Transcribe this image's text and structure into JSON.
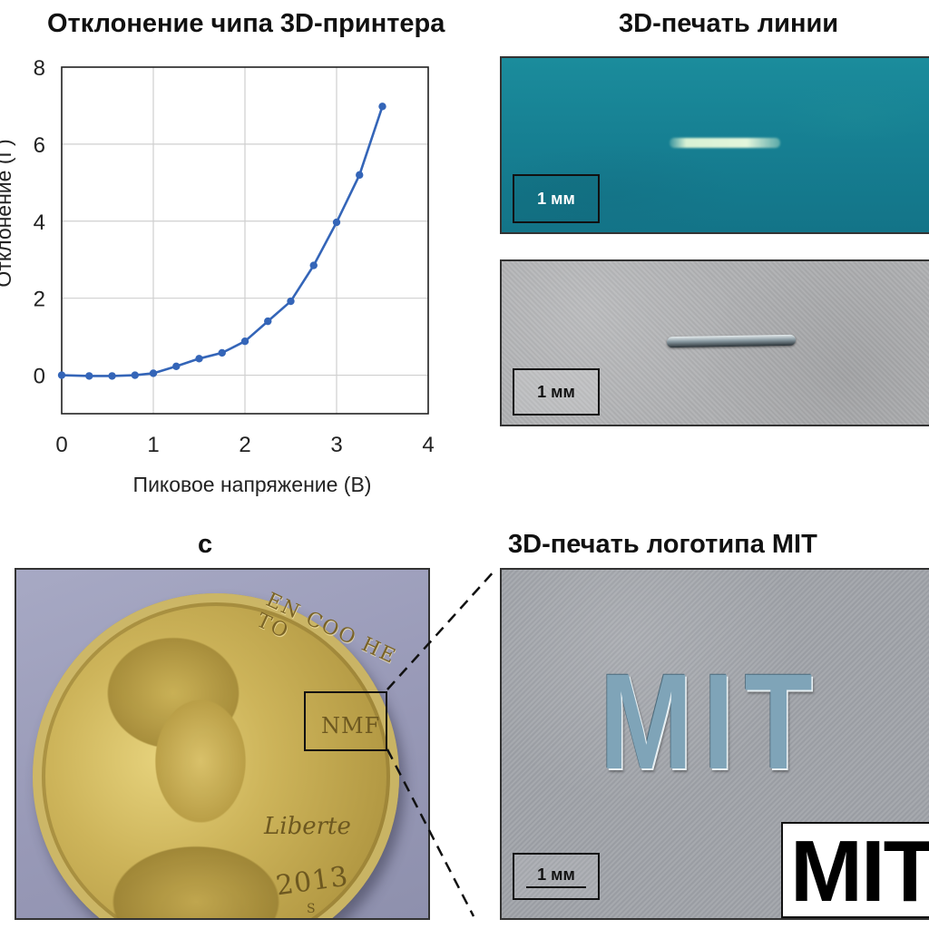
{
  "panels": {
    "chart_title": "Отклонение чипа 3D-принтера",
    "line_title": "3D-печать линии",
    "coin_title": "c",
    "logo_title": "3D-печать логотипа MIT"
  },
  "scale_bars": {
    "blue": "1 мм",
    "gray": "1 мм",
    "logo": "1 мм"
  },
  "coin": {
    "motto": "EN COO HE TO",
    "mint_mark": "NMF",
    "signature": "Liberte",
    "year": "2013",
    "mint": "S"
  },
  "logo": {
    "printed_text": "MIT",
    "logo_text": "MIT"
  },
  "chart_data": {
    "type": "line",
    "title": "",
    "xlabel": "Пиковое напряжение (В)",
    "ylabel": "Отклонение (Г)",
    "xlim": [
      0,
      4
    ],
    "ylim": [
      -1,
      8
    ],
    "xticks": [
      0,
      1,
      2,
      3,
      4
    ],
    "yticks": [
      0,
      2,
      4,
      6,
      8
    ],
    "grid": true,
    "color": "#3465b8",
    "series": [
      {
        "x": [
          0,
          0.3,
          0.55,
          0.8,
          1.0,
          1.25,
          1.5,
          1.75,
          2.0,
          2.25,
          2.5,
          2.75,
          3.0,
          3.25,
          3.5
        ],
        "y": [
          0,
          -0.02,
          -0.02,
          0.0,
          0.05,
          0.23,
          0.43,
          0.58,
          0.88,
          1.4,
          1.92,
          2.85,
          3.97,
          5.2,
          6.98
        ]
      }
    ]
  }
}
